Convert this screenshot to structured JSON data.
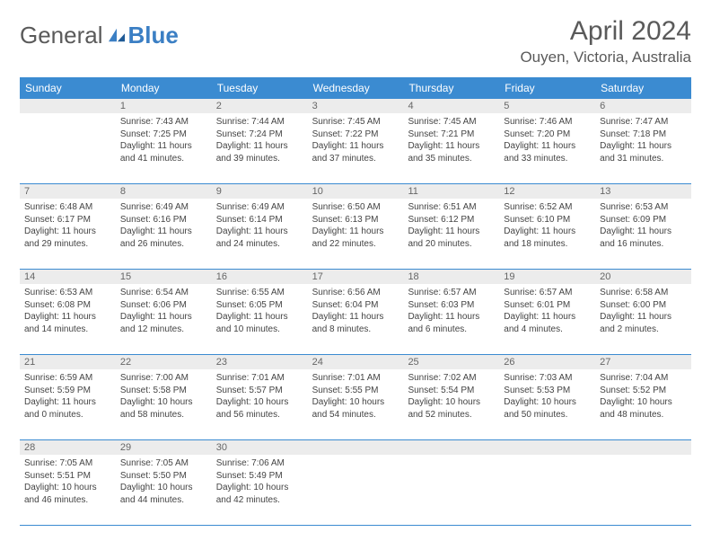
{
  "brand": {
    "part1": "General",
    "part2": "Blue"
  },
  "title": "April 2024",
  "location": "Ouyen, Victoria, Australia",
  "colors": {
    "header_bg": "#3b8bd1",
    "header_text": "#ffffff",
    "daynum_bg": "#ececec",
    "text": "#444444",
    "rule": "#3b8bd1",
    "brand_gray": "#5a5a5a",
    "brand_blue": "#3b7fc4"
  },
  "day_names": [
    "Sunday",
    "Monday",
    "Tuesday",
    "Wednesday",
    "Thursday",
    "Friday",
    "Saturday"
  ],
  "weeks": [
    [
      {
        "n": "",
        "lines": []
      },
      {
        "n": "1",
        "lines": [
          "Sunrise: 7:43 AM",
          "Sunset: 7:25 PM",
          "Daylight: 11 hours and 41 minutes."
        ]
      },
      {
        "n": "2",
        "lines": [
          "Sunrise: 7:44 AM",
          "Sunset: 7:24 PM",
          "Daylight: 11 hours and 39 minutes."
        ]
      },
      {
        "n": "3",
        "lines": [
          "Sunrise: 7:45 AM",
          "Sunset: 7:22 PM",
          "Daylight: 11 hours and 37 minutes."
        ]
      },
      {
        "n": "4",
        "lines": [
          "Sunrise: 7:45 AM",
          "Sunset: 7:21 PM",
          "Daylight: 11 hours and 35 minutes."
        ]
      },
      {
        "n": "5",
        "lines": [
          "Sunrise: 7:46 AM",
          "Sunset: 7:20 PM",
          "Daylight: 11 hours and 33 minutes."
        ]
      },
      {
        "n": "6",
        "lines": [
          "Sunrise: 7:47 AM",
          "Sunset: 7:18 PM",
          "Daylight: 11 hours and 31 minutes."
        ]
      }
    ],
    [
      {
        "n": "7",
        "lines": [
          "Sunrise: 6:48 AM",
          "Sunset: 6:17 PM",
          "Daylight: 11 hours and 29 minutes."
        ]
      },
      {
        "n": "8",
        "lines": [
          "Sunrise: 6:49 AM",
          "Sunset: 6:16 PM",
          "Daylight: 11 hours and 26 minutes."
        ]
      },
      {
        "n": "9",
        "lines": [
          "Sunrise: 6:49 AM",
          "Sunset: 6:14 PM",
          "Daylight: 11 hours and 24 minutes."
        ]
      },
      {
        "n": "10",
        "lines": [
          "Sunrise: 6:50 AM",
          "Sunset: 6:13 PM",
          "Daylight: 11 hours and 22 minutes."
        ]
      },
      {
        "n": "11",
        "lines": [
          "Sunrise: 6:51 AM",
          "Sunset: 6:12 PM",
          "Daylight: 11 hours and 20 minutes."
        ]
      },
      {
        "n": "12",
        "lines": [
          "Sunrise: 6:52 AM",
          "Sunset: 6:10 PM",
          "Daylight: 11 hours and 18 minutes."
        ]
      },
      {
        "n": "13",
        "lines": [
          "Sunrise: 6:53 AM",
          "Sunset: 6:09 PM",
          "Daylight: 11 hours and 16 minutes."
        ]
      }
    ],
    [
      {
        "n": "14",
        "lines": [
          "Sunrise: 6:53 AM",
          "Sunset: 6:08 PM",
          "Daylight: 11 hours and 14 minutes."
        ]
      },
      {
        "n": "15",
        "lines": [
          "Sunrise: 6:54 AM",
          "Sunset: 6:06 PM",
          "Daylight: 11 hours and 12 minutes."
        ]
      },
      {
        "n": "16",
        "lines": [
          "Sunrise: 6:55 AM",
          "Sunset: 6:05 PM",
          "Daylight: 11 hours and 10 minutes."
        ]
      },
      {
        "n": "17",
        "lines": [
          "Sunrise: 6:56 AM",
          "Sunset: 6:04 PM",
          "Daylight: 11 hours and 8 minutes."
        ]
      },
      {
        "n": "18",
        "lines": [
          "Sunrise: 6:57 AM",
          "Sunset: 6:03 PM",
          "Daylight: 11 hours and 6 minutes."
        ]
      },
      {
        "n": "19",
        "lines": [
          "Sunrise: 6:57 AM",
          "Sunset: 6:01 PM",
          "Daylight: 11 hours and 4 minutes."
        ]
      },
      {
        "n": "20",
        "lines": [
          "Sunrise: 6:58 AM",
          "Sunset: 6:00 PM",
          "Daylight: 11 hours and 2 minutes."
        ]
      }
    ],
    [
      {
        "n": "21",
        "lines": [
          "Sunrise: 6:59 AM",
          "Sunset: 5:59 PM",
          "Daylight: 11 hours and 0 minutes."
        ]
      },
      {
        "n": "22",
        "lines": [
          "Sunrise: 7:00 AM",
          "Sunset: 5:58 PM",
          "Daylight: 10 hours and 58 minutes."
        ]
      },
      {
        "n": "23",
        "lines": [
          "Sunrise: 7:01 AM",
          "Sunset: 5:57 PM",
          "Daylight: 10 hours and 56 minutes."
        ]
      },
      {
        "n": "24",
        "lines": [
          "Sunrise: 7:01 AM",
          "Sunset: 5:55 PM",
          "Daylight: 10 hours and 54 minutes."
        ]
      },
      {
        "n": "25",
        "lines": [
          "Sunrise: 7:02 AM",
          "Sunset: 5:54 PM",
          "Daylight: 10 hours and 52 minutes."
        ]
      },
      {
        "n": "26",
        "lines": [
          "Sunrise: 7:03 AM",
          "Sunset: 5:53 PM",
          "Daylight: 10 hours and 50 minutes."
        ]
      },
      {
        "n": "27",
        "lines": [
          "Sunrise: 7:04 AM",
          "Sunset: 5:52 PM",
          "Daylight: 10 hours and 48 minutes."
        ]
      }
    ],
    [
      {
        "n": "28",
        "lines": [
          "Sunrise: 7:05 AM",
          "Sunset: 5:51 PM",
          "Daylight: 10 hours and 46 minutes."
        ]
      },
      {
        "n": "29",
        "lines": [
          "Sunrise: 7:05 AM",
          "Sunset: 5:50 PM",
          "Daylight: 10 hours and 44 minutes."
        ]
      },
      {
        "n": "30",
        "lines": [
          "Sunrise: 7:06 AM",
          "Sunset: 5:49 PM",
          "Daylight: 10 hours and 42 minutes."
        ]
      },
      {
        "n": "",
        "lines": []
      },
      {
        "n": "",
        "lines": []
      },
      {
        "n": "",
        "lines": []
      },
      {
        "n": "",
        "lines": []
      }
    ]
  ]
}
